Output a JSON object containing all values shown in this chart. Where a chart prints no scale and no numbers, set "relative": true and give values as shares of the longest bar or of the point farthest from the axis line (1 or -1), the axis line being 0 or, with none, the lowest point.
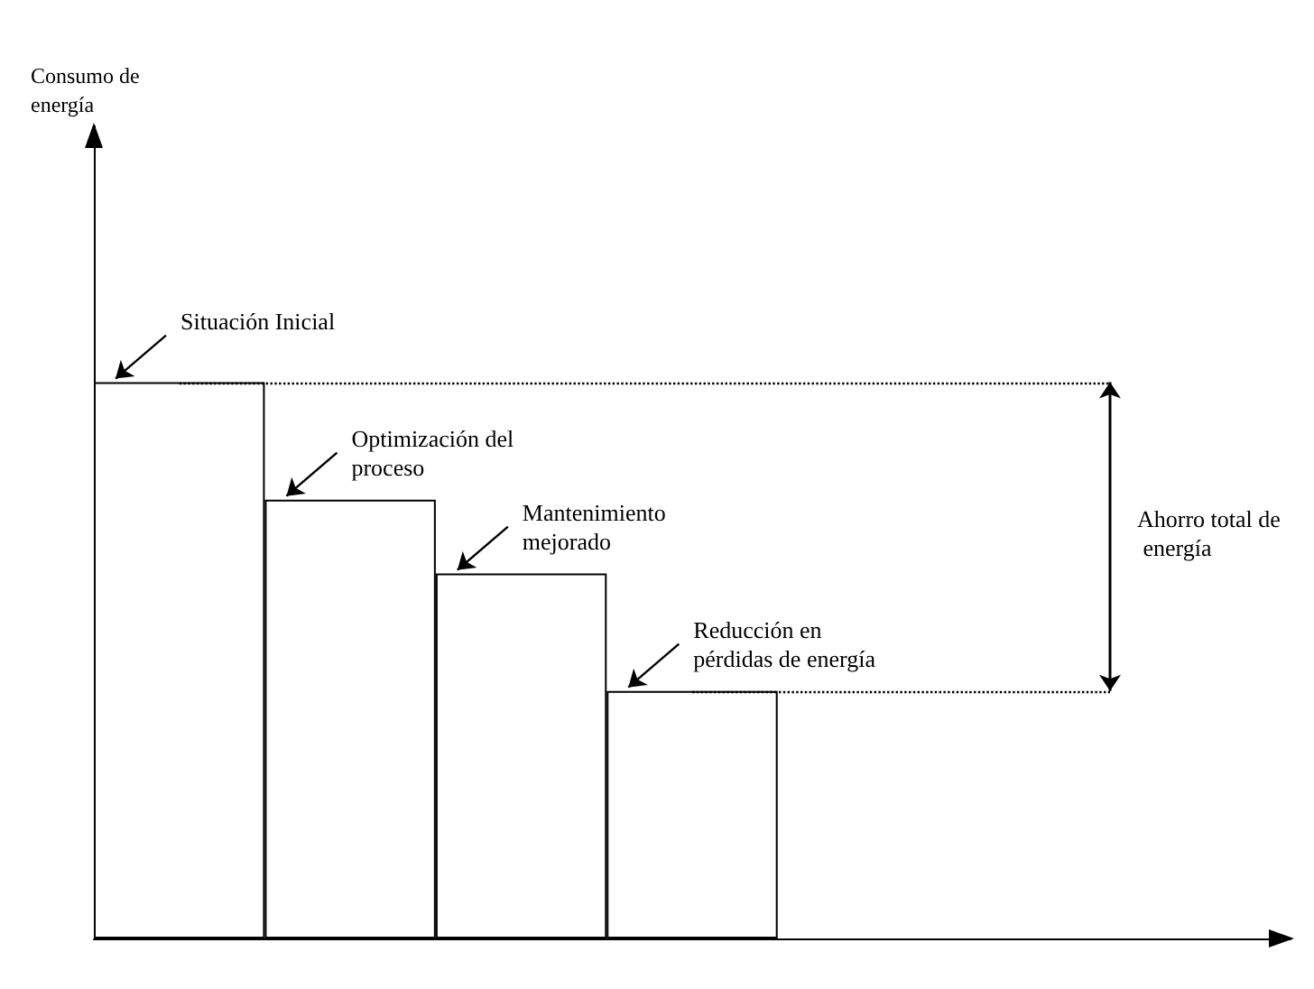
{
  "chart_data": {
    "type": "bar",
    "relative": true,
    "categories": [
      null,
      null,
      null,
      null
    ],
    "values": [
      1,
      0.789,
      0.656,
      0.445
    ],
    "color": "#ffffff",
    "annotations": [
      "Consumo de energía",
      "Situación Inicial",
      "Optimización del proceso",
      "Mantenimiento mejorado",
      "Reducción en pérdidas de energía",
      "Ahorro total de energía"
    ],
    "ref_lines": [
      {
        "axis": "y",
        "value": 1,
        "line_style": "dotted"
      },
      {
        "axis": "y",
        "value": 0.445,
        "line_style": "dotted"
      }
    ]
  }
}
